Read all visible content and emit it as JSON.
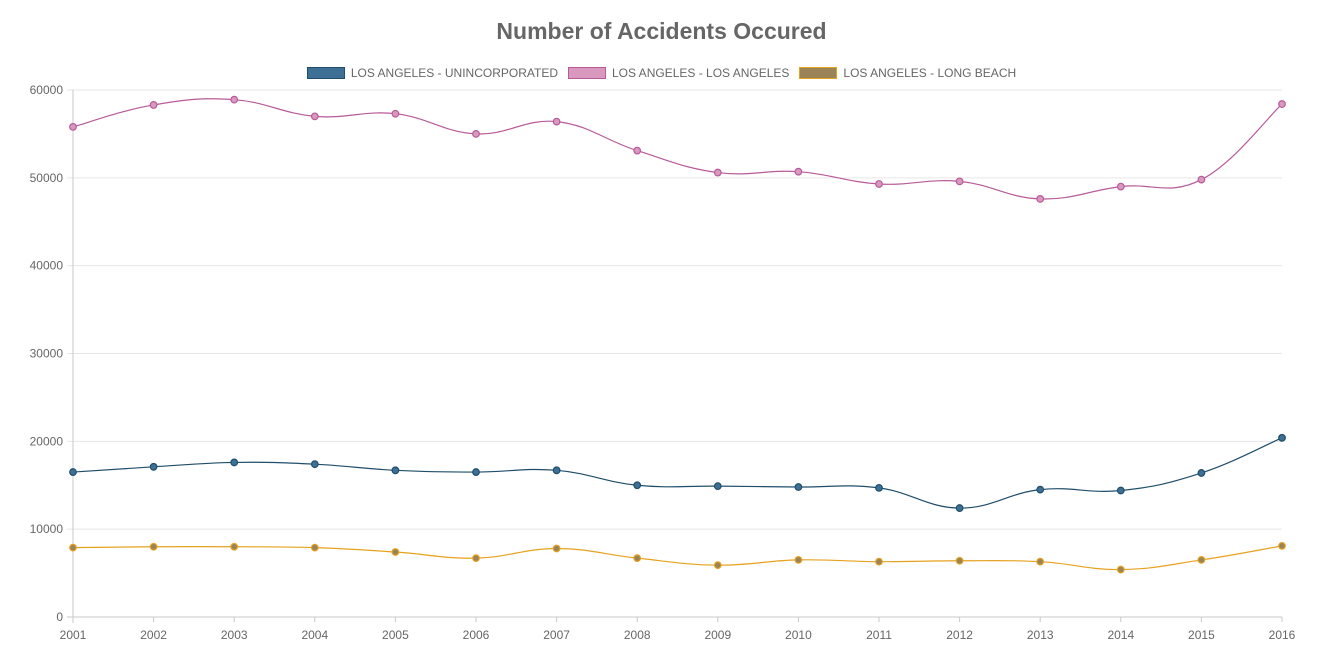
{
  "chart_data": {
    "type": "line",
    "title": "Number of Accidents Occured",
    "xlabel": "",
    "ylabel": "",
    "categories": [
      "2001",
      "2002",
      "2003",
      "2004",
      "2005",
      "2006",
      "2007",
      "2008",
      "2009",
      "2010",
      "2011",
      "2012",
      "2013",
      "2014",
      "2015",
      "2016"
    ],
    "ylim": [
      0,
      60000
    ],
    "yticks": [
      0,
      10000,
      20000,
      30000,
      40000,
      50000,
      60000
    ],
    "yticks_labels": [
      "0",
      "10000",
      "20000",
      "30000",
      "40000",
      "50000",
      "60000"
    ],
    "grid": true,
    "legend_position": "top",
    "series": [
      {
        "name": "LOS ANGELES - UNINCORPORATED",
        "color": "#1f4e6b",
        "fill": "#3e6f94",
        "values": [
          16500,
          17100,
          17600,
          17400,
          16700,
          16500,
          16700,
          15000,
          14900,
          14800,
          14700,
          12400,
          14500,
          14400,
          16400,
          20400
        ]
      },
      {
        "name": "LOS ANGELES - LOS ANGELES",
        "color": "#b85a9a",
        "fill": "#d998bd",
        "values": [
          55800,
          58300,
          58900,
          57000,
          57300,
          55000,
          56400,
          53100,
          50600,
          50700,
          49300,
          49600,
          47600,
          49000,
          49800,
          58400
        ]
      },
      {
        "name": "LOS ANGELES - LONG BEACH",
        "color": "#e6a21e",
        "fill": "#9b8358",
        "values": [
          7900,
          8000,
          8000,
          7900,
          7400,
          6700,
          7800,
          6700,
          5900,
          6500,
          6300,
          6400,
          6300,
          5400,
          6500,
          8100
        ]
      }
    ]
  }
}
